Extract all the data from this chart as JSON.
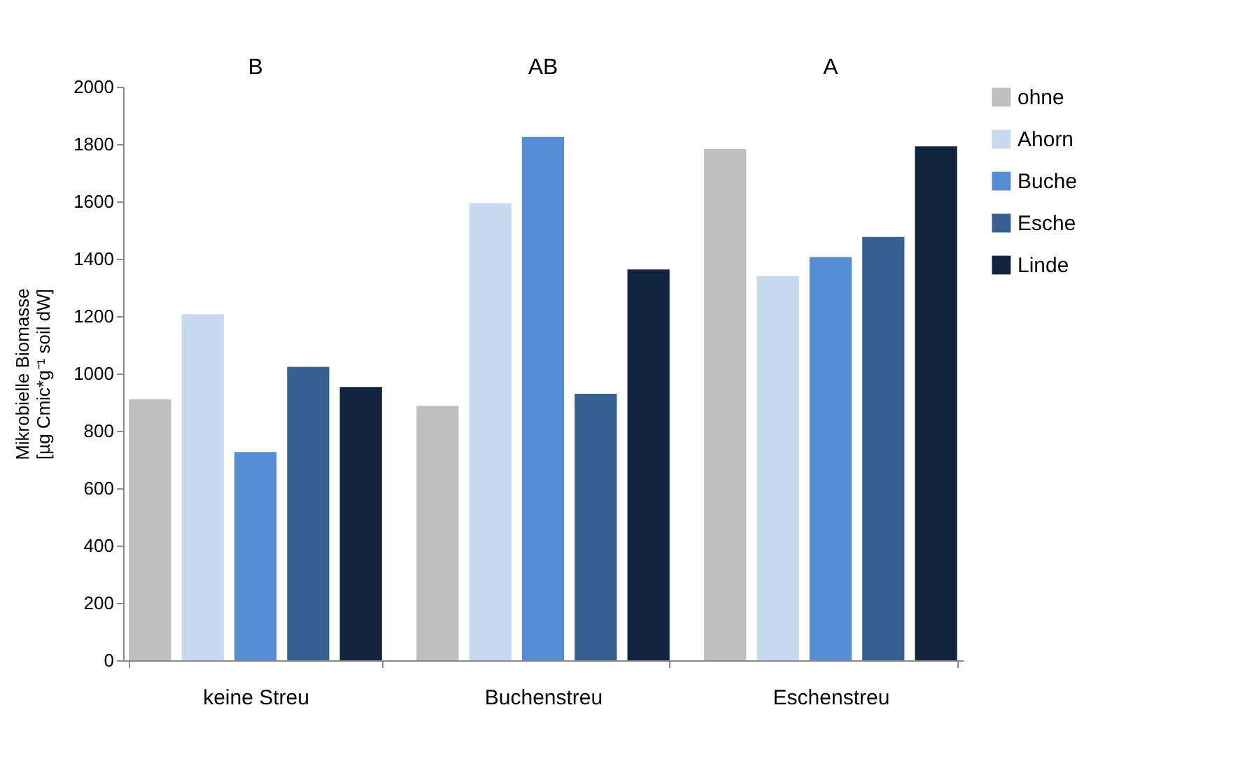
{
  "chart_data": {
    "type": "bar",
    "ylabel": "Mikrobielle Biomasse\n[µg Cmic*g⁻¹ soil dW]",
    "categories": [
      "keine Streu",
      "Buchenstreu",
      "Eschenstreu"
    ],
    "series": [
      {
        "name": "ohne",
        "color": "#bfbfbf",
        "values": [
          910,
          887,
          1783
        ]
      },
      {
        "name": "Ahorn",
        "color": "#c6d9f1",
        "values": [
          1207,
          1594,
          1340
        ]
      },
      {
        "name": "Buche",
        "color": "#558ed5",
        "values": [
          726,
          1825,
          1406
        ]
      },
      {
        "name": "Esche",
        "color": "#376092",
        "values": [
          1023,
          929,
          1476
        ]
      },
      {
        "name": "Linde",
        "color": "#10243f",
        "values": [
          953,
          1363,
          1792
        ]
      }
    ],
    "ylim": [
      0,
      2000
    ],
    "yticks": [
      0,
      200,
      400,
      600,
      800,
      1000,
      1200,
      1400,
      1600,
      1800,
      2000
    ],
    "grid": false,
    "legend": "right",
    "annotations": [
      "B",
      "AB",
      "A"
    ]
  }
}
